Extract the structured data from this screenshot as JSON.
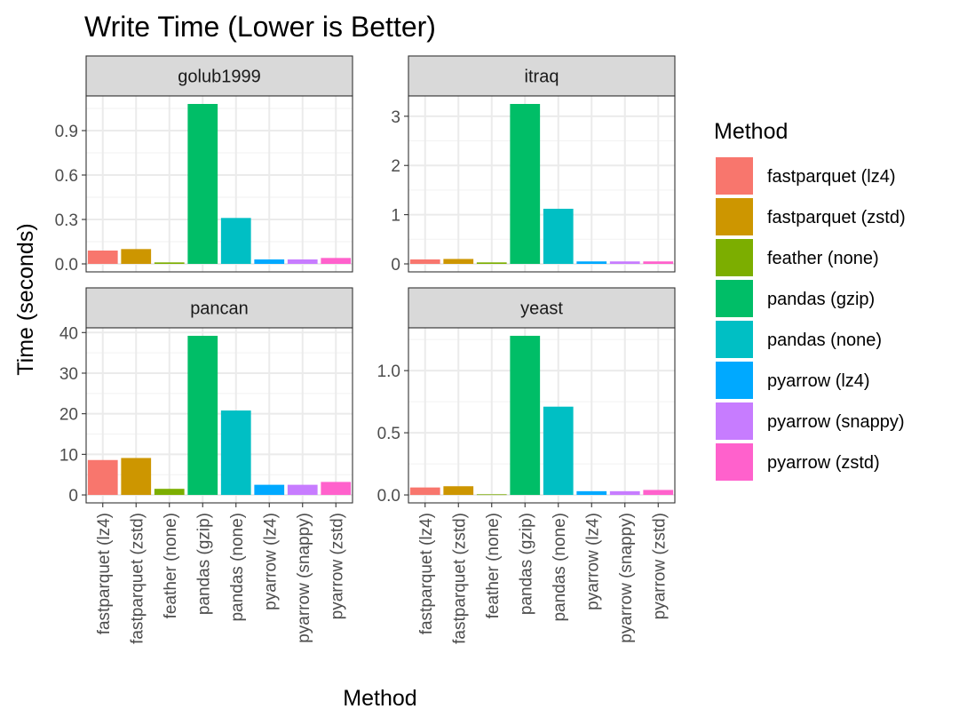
{
  "chart_data": {
    "type": "bar",
    "title": "Write Time (Lower is Better)",
    "xlabel": "Method",
    "ylabel": "Time (seconds)",
    "grid": true,
    "legend_position": "right",
    "legend_title": "Method",
    "categories": [
      "fastparquet (lz4)",
      "fastparquet (zstd)",
      "feather (none)",
      "pandas (gzip)",
      "pandas (none)",
      "pyarrow (lz4)",
      "pyarrow (snappy)",
      "pyarrow (zstd)"
    ],
    "colors": [
      "#F8766D",
      "#CD9600",
      "#7CAE00",
      "#00BE67",
      "#00BFC4",
      "#00A9FF",
      "#C77CFF",
      "#FF61CC"
    ],
    "panels": [
      {
        "name": "golub1999",
        "values": [
          0.09,
          0.1,
          0.01,
          1.08,
          0.31,
          0.03,
          0.03,
          0.04
        ],
        "ylim": [
          -0.054,
          1.134
        ],
        "yticks": [
          0,
          0.3,
          0.6,
          0.9
        ],
        "ytick_labels": [
          "0.0",
          "0.3",
          "0.6",
          "0.9"
        ]
      },
      {
        "name": "itraq",
        "values": [
          0.09,
          0.1,
          0.03,
          3.25,
          1.12,
          0.05,
          0.05,
          0.05
        ],
        "ylim": [
          -0.1625,
          3.4125
        ],
        "yticks": [
          0,
          1,
          2,
          3
        ],
        "ytick_labels": [
          "0",
          "1",
          "2",
          "3"
        ]
      },
      {
        "name": "pancan",
        "values": [
          8.6,
          9.1,
          1.5,
          39.2,
          20.8,
          2.5,
          2.5,
          3.2
        ],
        "ylim": [
          -1.96,
          41.16
        ],
        "yticks": [
          0,
          10,
          20,
          30,
          40
        ],
        "ytick_labels": [
          "0",
          "10",
          "20",
          "30",
          "40"
        ]
      },
      {
        "name": "yeast",
        "values": [
          0.06,
          0.07,
          0.005,
          1.28,
          0.71,
          0.03,
          0.03,
          0.04
        ],
        "ylim": [
          -0.064,
          1.344
        ],
        "yticks": [
          0,
          0.5,
          1
        ],
        "ytick_labels": [
          "0.0",
          "0.5",
          "1.0"
        ]
      }
    ]
  }
}
